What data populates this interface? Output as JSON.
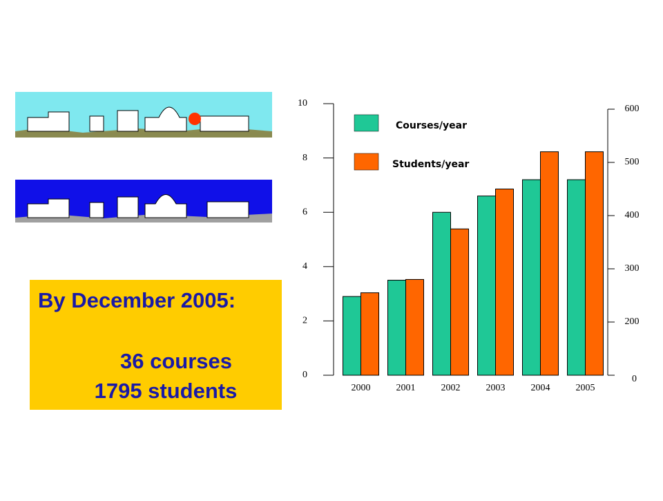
{
  "chart_data": {
    "type": "bar",
    "categories": [
      "2000",
      "2001",
      "2002",
      "2003",
      "2004",
      "2005"
    ],
    "series": [
      {
        "name": "Courses/year",
        "color": "#1fc896",
        "values": [
          2.9,
          3.5,
          6,
          6.6,
          7.2,
          7.2
        ]
      },
      {
        "name": "Students/year",
        "color": "#ff6600",
        "axis": "y2",
        "values": [
          255,
          280,
          375,
          450,
          520,
          520
        ]
      }
    ],
    "ylim": [
      0,
      10
    ],
    "yticks": [
      0,
      2,
      4,
      6,
      8,
      10
    ],
    "y2lim": [
      0,
      600
    ],
    "y2ticks": [
      0,
      200,
      300,
      400,
      500,
      600
    ],
    "annotations": [
      "By December 2005:",
      "36 courses",
      "1795 students"
    ]
  }
}
